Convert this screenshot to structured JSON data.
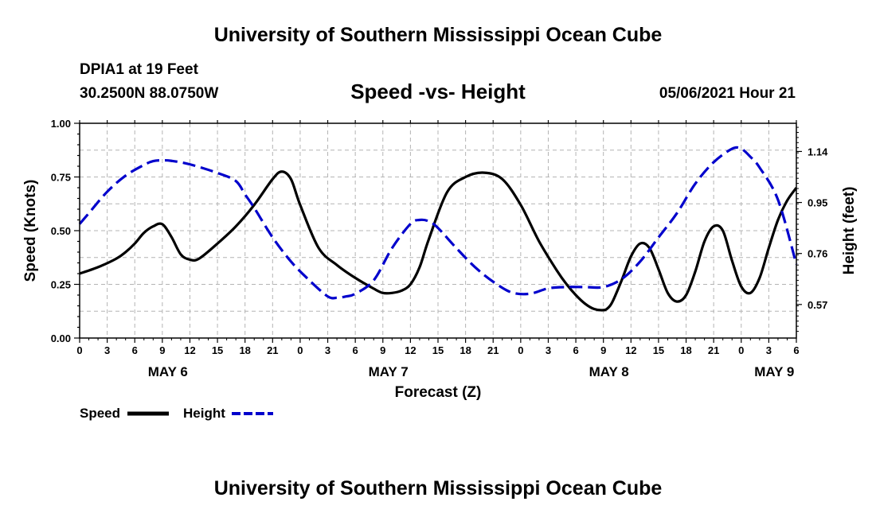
{
  "header": {
    "title": "University of Southern Mississippi Ocean Cube",
    "station": "DPIA1 at 19 Feet",
    "coords": "30.2500N  88.0750W",
    "chart_title": "Speed -vs- Height",
    "datetime": "05/06/2021 Hour 21"
  },
  "footer": {
    "title": "University of Southern Mississippi Ocean Cube"
  },
  "colors": {
    "speed": "#000000",
    "height": "#0000cc",
    "grid": "#b4b4b4"
  },
  "chart_data": {
    "type": "line",
    "title": "Speed -vs- Height",
    "xlabel": "Forecast (Z)",
    "ylabel": "Speed (Knots)",
    "y2label": "Height (feet)",
    "xlim": [
      0,
      78
    ],
    "ylim": [
      0,
      1
    ],
    "y2lim": [
      0.445,
      1.245
    ],
    "x_ticks": [
      0,
      3,
      6,
      9,
      12,
      15,
      18,
      21,
      24,
      27,
      30,
      33,
      36,
      39,
      42,
      45,
      48,
      51,
      54,
      57,
      60,
      63,
      66,
      69,
      72,
      75,
      78
    ],
    "x_tick_labels": [
      "0",
      "3",
      "6",
      "9",
      "12",
      "15",
      "18",
      "21",
      "0",
      "3",
      "6",
      "9",
      "12",
      "15",
      "18",
      "21",
      "0",
      "3",
      "6",
      "9",
      "12",
      "15",
      "18",
      "21",
      "0",
      "3",
      "6"
    ],
    "y_ticks": [
      0,
      0.25,
      0.5,
      0.75,
      1.0
    ],
    "y_tick_labels": [
      "0.00",
      "0.25",
      "0.50",
      "0.75",
      "1.00"
    ],
    "y2_ticks": [
      0.57,
      0.76,
      0.95,
      1.14
    ],
    "y2_tick_labels": [
      "0.57",
      "0.76",
      "0.95",
      "1.14"
    ],
    "day_labels": [
      {
        "x": 9.6,
        "label": "MAY 6"
      },
      {
        "x": 33.6,
        "label": "MAY 7"
      },
      {
        "x": 57.6,
        "label": "MAY 8"
      },
      {
        "x": 75.6,
        "label": "MAY 9"
      }
    ],
    "series": [
      {
        "name": "Speed",
        "axis": "left",
        "style": "solid",
        "x": [
          0,
          2,
          4,
          5,
          6,
          7,
          8,
          9,
          10,
          11,
          12,
          13,
          15,
          17,
          19,
          21,
          22,
          23,
          24,
          26,
          28,
          30,
          32,
          33,
          34,
          35,
          36,
          37,
          38,
          40,
          42,
          44,
          46,
          48,
          50,
          52,
          53,
          54,
          55,
          56,
          57,
          57.5,
          58,
          59,
          60,
          61,
          62,
          63,
          64,
          65,
          66,
          67,
          68,
          69,
          70,
          71,
          72,
          73,
          74,
          75,
          76,
          77,
          78
        ],
        "values": [
          0.3,
          0.33,
          0.37,
          0.4,
          0.44,
          0.49,
          0.52,
          0.53,
          0.47,
          0.39,
          0.365,
          0.37,
          0.44,
          0.52,
          0.62,
          0.74,
          0.775,
          0.74,
          0.62,
          0.42,
          0.34,
          0.28,
          0.23,
          0.21,
          0.21,
          0.22,
          0.25,
          0.33,
          0.46,
          0.68,
          0.75,
          0.77,
          0.74,
          0.62,
          0.45,
          0.31,
          0.25,
          0.2,
          0.16,
          0.135,
          0.13,
          0.14,
          0.17,
          0.27,
          0.38,
          0.44,
          0.42,
          0.32,
          0.21,
          0.17,
          0.2,
          0.31,
          0.45,
          0.52,
          0.5,
          0.36,
          0.24,
          0.21,
          0.28,
          0.42,
          0.55,
          0.64,
          0.7
        ]
      },
      {
        "name": "Height",
        "axis": "right",
        "style": "dashed",
        "x": [
          0,
          1,
          3,
          5,
          7,
          8,
          9,
          10,
          12,
          15,
          17,
          18,
          19,
          21,
          23,
          25,
          27,
          28,
          29,
          30,
          32,
          34,
          36,
          37,
          38,
          39,
          41,
          43,
          45,
          47,
          49,
          51,
          53,
          55,
          57,
          59,
          61,
          63,
          65,
          67,
          69,
          71,
          72,
          73,
          74,
          76,
          78
        ],
        "values": [
          0.87,
          0.91,
          0.99,
          1.05,
          1.09,
          1.104,
          1.107,
          1.105,
          1.092,
          1.06,
          1.03,
          0.98,
          0.93,
          0.82,
          0.73,
          0.66,
          0.6,
          0.595,
          0.6,
          0.61,
          0.66,
          0.78,
          0.87,
          0.885,
          0.88,
          0.855,
          0.78,
          0.71,
          0.655,
          0.615,
          0.61,
          0.63,
          0.635,
          0.635,
          0.635,
          0.665,
          0.73,
          0.82,
          0.91,
          1.02,
          1.1,
          1.15,
          1.15,
          1.12,
          1.08,
          0.96,
          0.72
        ]
      }
    ],
    "legend": [
      {
        "label": "Speed",
        "style": "solid"
      },
      {
        "label": "Height",
        "style": "dashed"
      }
    ]
  }
}
